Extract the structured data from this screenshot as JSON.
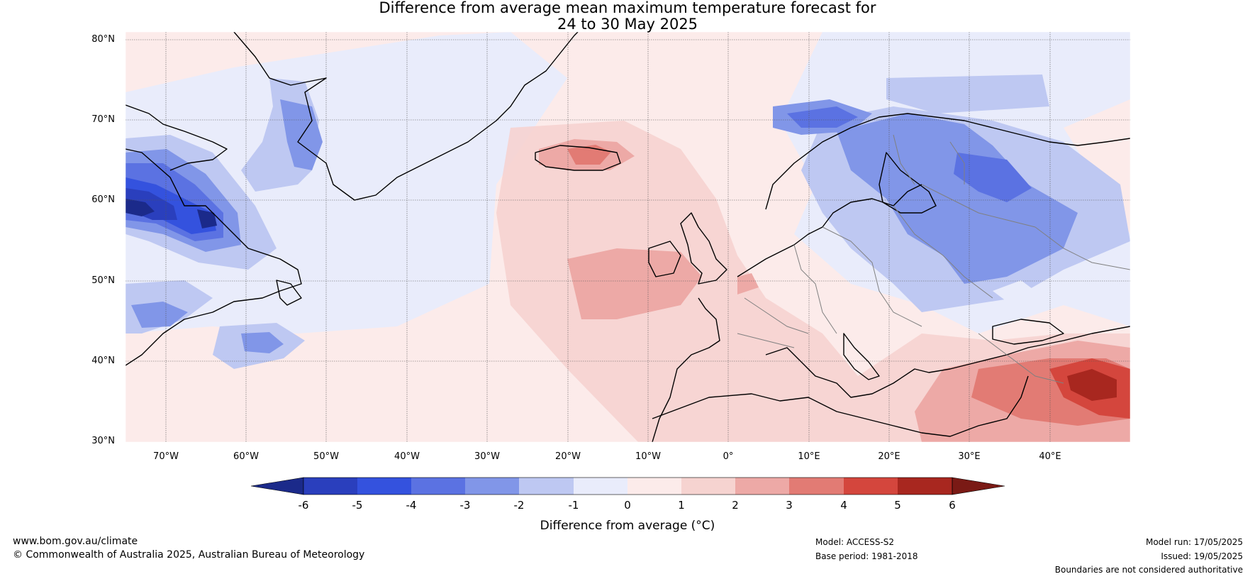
{
  "title": {
    "line1": "Difference from average mean maximum temperature forecast for",
    "line2": "24 to 30 May 2025"
  },
  "map": {
    "region": "North Atlantic and Europe",
    "extent": {
      "lon_min": -75,
      "lon_max": 50,
      "lat_min": 30,
      "lat_max": 81
    },
    "lat_labels": [
      "80°N",
      "70°N",
      "60°N",
      "50°N",
      "40°N",
      "30°N"
    ],
    "lon_labels": [
      "70°W",
      "60°W",
      "50°W",
      "40°W",
      "30°W",
      "20°W",
      "10°W",
      "0°",
      "10°E",
      "20°E",
      "30°E",
      "40°E"
    ],
    "anomaly_regions": [
      {
        "area": "Labrador / northern Quebec",
        "anomaly_c": -6
      },
      {
        "area": "Davis Strait",
        "anomaly_c": -4
      },
      {
        "area": "Western Greenland coast",
        "anomaly_c": -3
      },
      {
        "area": "Newfoundland offshore",
        "anomaly_c": -3
      },
      {
        "area": "Scandinavian mountains",
        "anomaly_c": -3
      },
      {
        "area": "Western Russia / Baltic",
        "anomaly_c": -3
      },
      {
        "area": "Iceland",
        "anomaly_c": 3
      },
      {
        "area": "West of Ireland",
        "anomaly_c": 2
      },
      {
        "area": "Western Greenland interior",
        "anomaly_c": 0.5
      },
      {
        "area": "Turkey",
        "anomaly_c": 4
      },
      {
        "area": "Iraq / Syria",
        "anomaly_c": 6
      }
    ]
  },
  "colorbar": {
    "ticks": [
      "-6",
      "-5",
      "-4",
      "-3",
      "-2",
      "-1",
      "0",
      "1",
      "2",
      "3",
      "4",
      "5",
      "6"
    ],
    "colors": [
      "#1b2a8a",
      "#2a3fbd",
      "#3452de",
      "#5b72e2",
      "#8196e8",
      "#bec8f2",
      "#e9ecfb",
      "#fcebea",
      "#f6d3d0",
      "#eda9a6",
      "#e27b74",
      "#d4463d",
      "#a8271f",
      "#7a1a15"
    ],
    "label": "Difference from average (°C)"
  },
  "footer": {
    "website": "www.bom.gov.au/climate",
    "copyright": "© Commonwealth of Australia 2025, Australian Bureau of Meteorology",
    "model": "Model: ACCESS-S2",
    "base_period": "Base period: 1981-2018",
    "model_run": "Model run: 17/05/2025",
    "issued": "Issued: 19/05/2025",
    "disclaimer": "Boundaries are not considered authoritative"
  }
}
